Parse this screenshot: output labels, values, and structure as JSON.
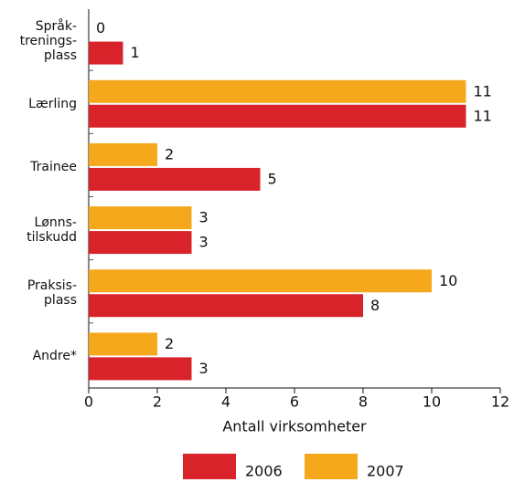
{
  "chart_data": {
    "type": "bar",
    "orientation": "horizontal",
    "categories": [
      "Språk-\ntrenings-\nplass",
      "Lærling",
      "Trainee",
      "Lønns-\ntilskudd",
      "Praksis-\nplass",
      "Andre*"
    ],
    "series": [
      {
        "name": "2006",
        "color": "#d8232a",
        "values": [
          1,
          11,
          5,
          3,
          8,
          3
        ]
      },
      {
        "name": "2007",
        "color": "#f5a81c",
        "values": [
          0,
          11,
          2,
          3,
          10,
          2
        ]
      }
    ],
    "xlabel": "Antall virksomheter",
    "xlim": [
      0,
      12
    ],
    "xticks": [
      0,
      2,
      4,
      6,
      8,
      10,
      12
    ],
    "legend": "bottom"
  }
}
